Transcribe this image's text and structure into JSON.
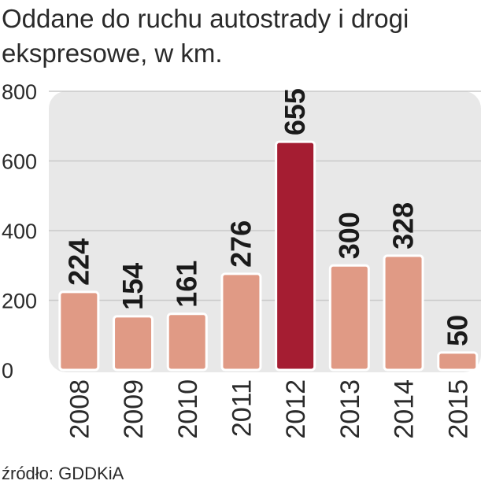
{
  "title": "Oddane do ruchu autostrady i drogi ekspresowe, w km.",
  "source": "źródło: GDDKiA",
  "colors": {
    "bar": "#e09a85",
    "highlight_bar": "#a51d32",
    "bar_stroke": "#ffffff",
    "plot_background": "#e8e8e8",
    "grid": "#c9c9c9",
    "axis_text": "#2a2a2a",
    "value_label": "#1a1a1a"
  },
  "chart_data": {
    "type": "bar",
    "title": "Oddane do ruchu autostrady i drogi ekspresowe, w km.",
    "categories": [
      "2008",
      "2009",
      "2010",
      "2011",
      "2012",
      "2013",
      "2014",
      "2015"
    ],
    "values": [
      224,
      154,
      161,
      276,
      655,
      300,
      328,
      50
    ],
    "value_labels": [
      "224",
      "154",
      "161",
      "276",
      "655",
      "300",
      "328",
      "50"
    ],
    "highlight_category": "2012",
    "ylim": [
      0,
      800
    ],
    "yticks": [
      0,
      200,
      400,
      600,
      800
    ],
    "ytick_labels": [
      "0",
      "200",
      "400",
      "600",
      "800"
    ],
    "grid": true,
    "xlabel": "",
    "ylabel": ""
  }
}
